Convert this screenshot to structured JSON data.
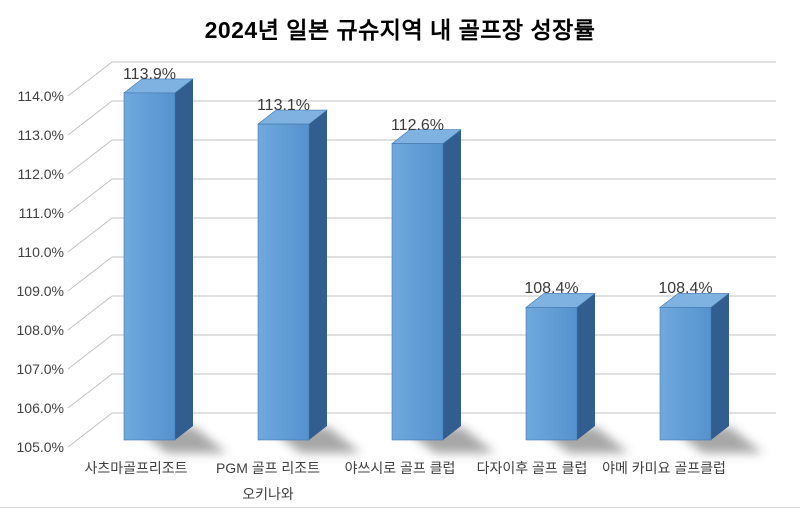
{
  "chart_data": {
    "type": "bar",
    "style": "3d-column",
    "title": "2024년 일본 규슈지역 내 골프장 성장률",
    "categories": [
      "사츠마골프리조트",
      "PGM 골프 리조트 오키나와",
      "야쓰시로 골프 클럽",
      "다자이후 골프 클럽",
      "야메 카미요 골프클럽"
    ],
    "category_label_lines": [
      [
        "사츠마골프리조트"
      ],
      [
        "PGM 골프 리조트",
        "오키나와"
      ],
      [
        "야쓰시로 골프 클럽"
      ],
      [
        "다자이후 골프 클럽"
      ],
      [
        "야메 카미요 골프클럽"
      ]
    ],
    "values": [
      113.9,
      113.1,
      112.6,
      108.4,
      108.4
    ],
    "data_labels": [
      "113.9%",
      "113.1%",
      "112.6%",
      "108.4%",
      "108.4%"
    ],
    "y_ticks": [
      {
        "label": "114.0%",
        "value": 114
      },
      {
        "label": "113.0%",
        "value": 113
      },
      {
        "label": "112.0%",
        "value": 112
      },
      {
        "label": "111.0%",
        "value": 111
      },
      {
        "label": "110.0%",
        "value": 110
      },
      {
        "label": "109.0%",
        "value": 109
      },
      {
        "label": "108.0%",
        "value": 108
      },
      {
        "label": "107.0%",
        "value": 107
      },
      {
        "label": "106.0%",
        "value": 106
      },
      {
        "label": "105.0%",
        "value": 105
      }
    ],
    "ylim": [
      105,
      114
    ],
    "xlabel": "",
    "ylabel": "",
    "grid": true,
    "legend": false,
    "colors": {
      "bar_front_light": "#6FA9DD",
      "bar_front_dark": "#5592CE",
      "bar_top": "#7FB1E1",
      "bar_side": "#315E8E",
      "bar_edge": "#4579AE",
      "gridline": "#C1C1C1",
      "axis_text": "#404040",
      "title_text": "#000000",
      "shadow": "#4F4F4F",
      "background": "#FFFFFF"
    }
  }
}
